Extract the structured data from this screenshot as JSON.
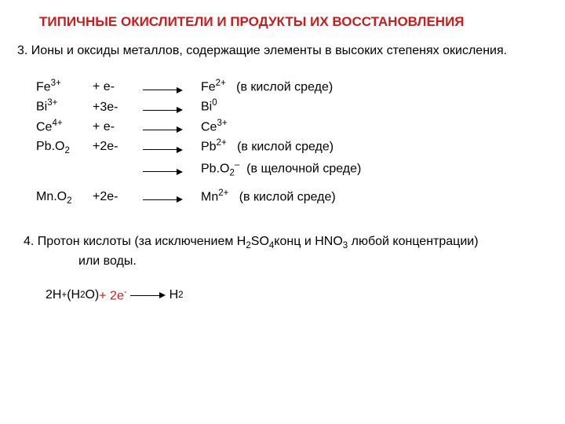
{
  "title": "ТИПИЧНЫЕ ОКИСЛИТЕЛИ И ПРОДУКТЫ ИХ ВОССТАНОВЛЕНИЯ",
  "section3_head": "3. Ионы и оксиды металлов, содержащие элементы в высоких степенях окисления.",
  "rows": [
    {
      "ion_base": "Fe",
      "ion_sup": "3+",
      "el": "+ e-",
      "prod_base": "Fe",
      "prod_sup": "2+",
      "prod_sub": "",
      "note": "(в кислой среде)"
    },
    {
      "ion_base": "Bi",
      "ion_sup": "3+",
      "el": "+3e-",
      "prod_base": "Bi",
      "prod_sup": "0",
      "prod_sub": "",
      "note": ""
    },
    {
      "ion_base": "Ce",
      "ion_sup": "4+",
      "el": "+ e-",
      "prod_base": "Ce",
      "prod_sup": "3+",
      "prod_sub": "",
      "note": ""
    },
    {
      "ion_base": "Pb.O",
      "ion_sub": "2",
      "el": "+2e-",
      "prod_base": "Pb",
      "prod_sup": "2+",
      "prod_sub": "",
      "note": "(в кислой среде)"
    },
    {
      "ion_base": "",
      "el": "",
      "prod_base": "Pb.O",
      "prod_sub": "2",
      "prod_sup": "–",
      "note": "(в щелочной среде)"
    },
    {
      "ion_base": "Mn.O",
      "ion_sub": "2",
      "el": "+2e-",
      "prod_base": "Mn",
      "prod_sup": "2+",
      "prod_sub": "",
      "note": "(в кислой среде)"
    }
  ],
  "section4_a": "4. Протон кислоты (за исключением H",
  "section4_b": "SO",
  "section4_c": "конц и HNO",
  "section4_d": "3",
  "section4_e": " любой концентрации)",
  "section4_line2": "или воды.",
  "eq_left_a": "2H",
  "eq_left_b": " (H",
  "eq_left_c": "O) ",
  "eq_red": "+ 2e",
  "eq_right": " H",
  "colors": {
    "red": "#c41e1e",
    "text": "#000000",
    "bg": "#ffffff"
  }
}
